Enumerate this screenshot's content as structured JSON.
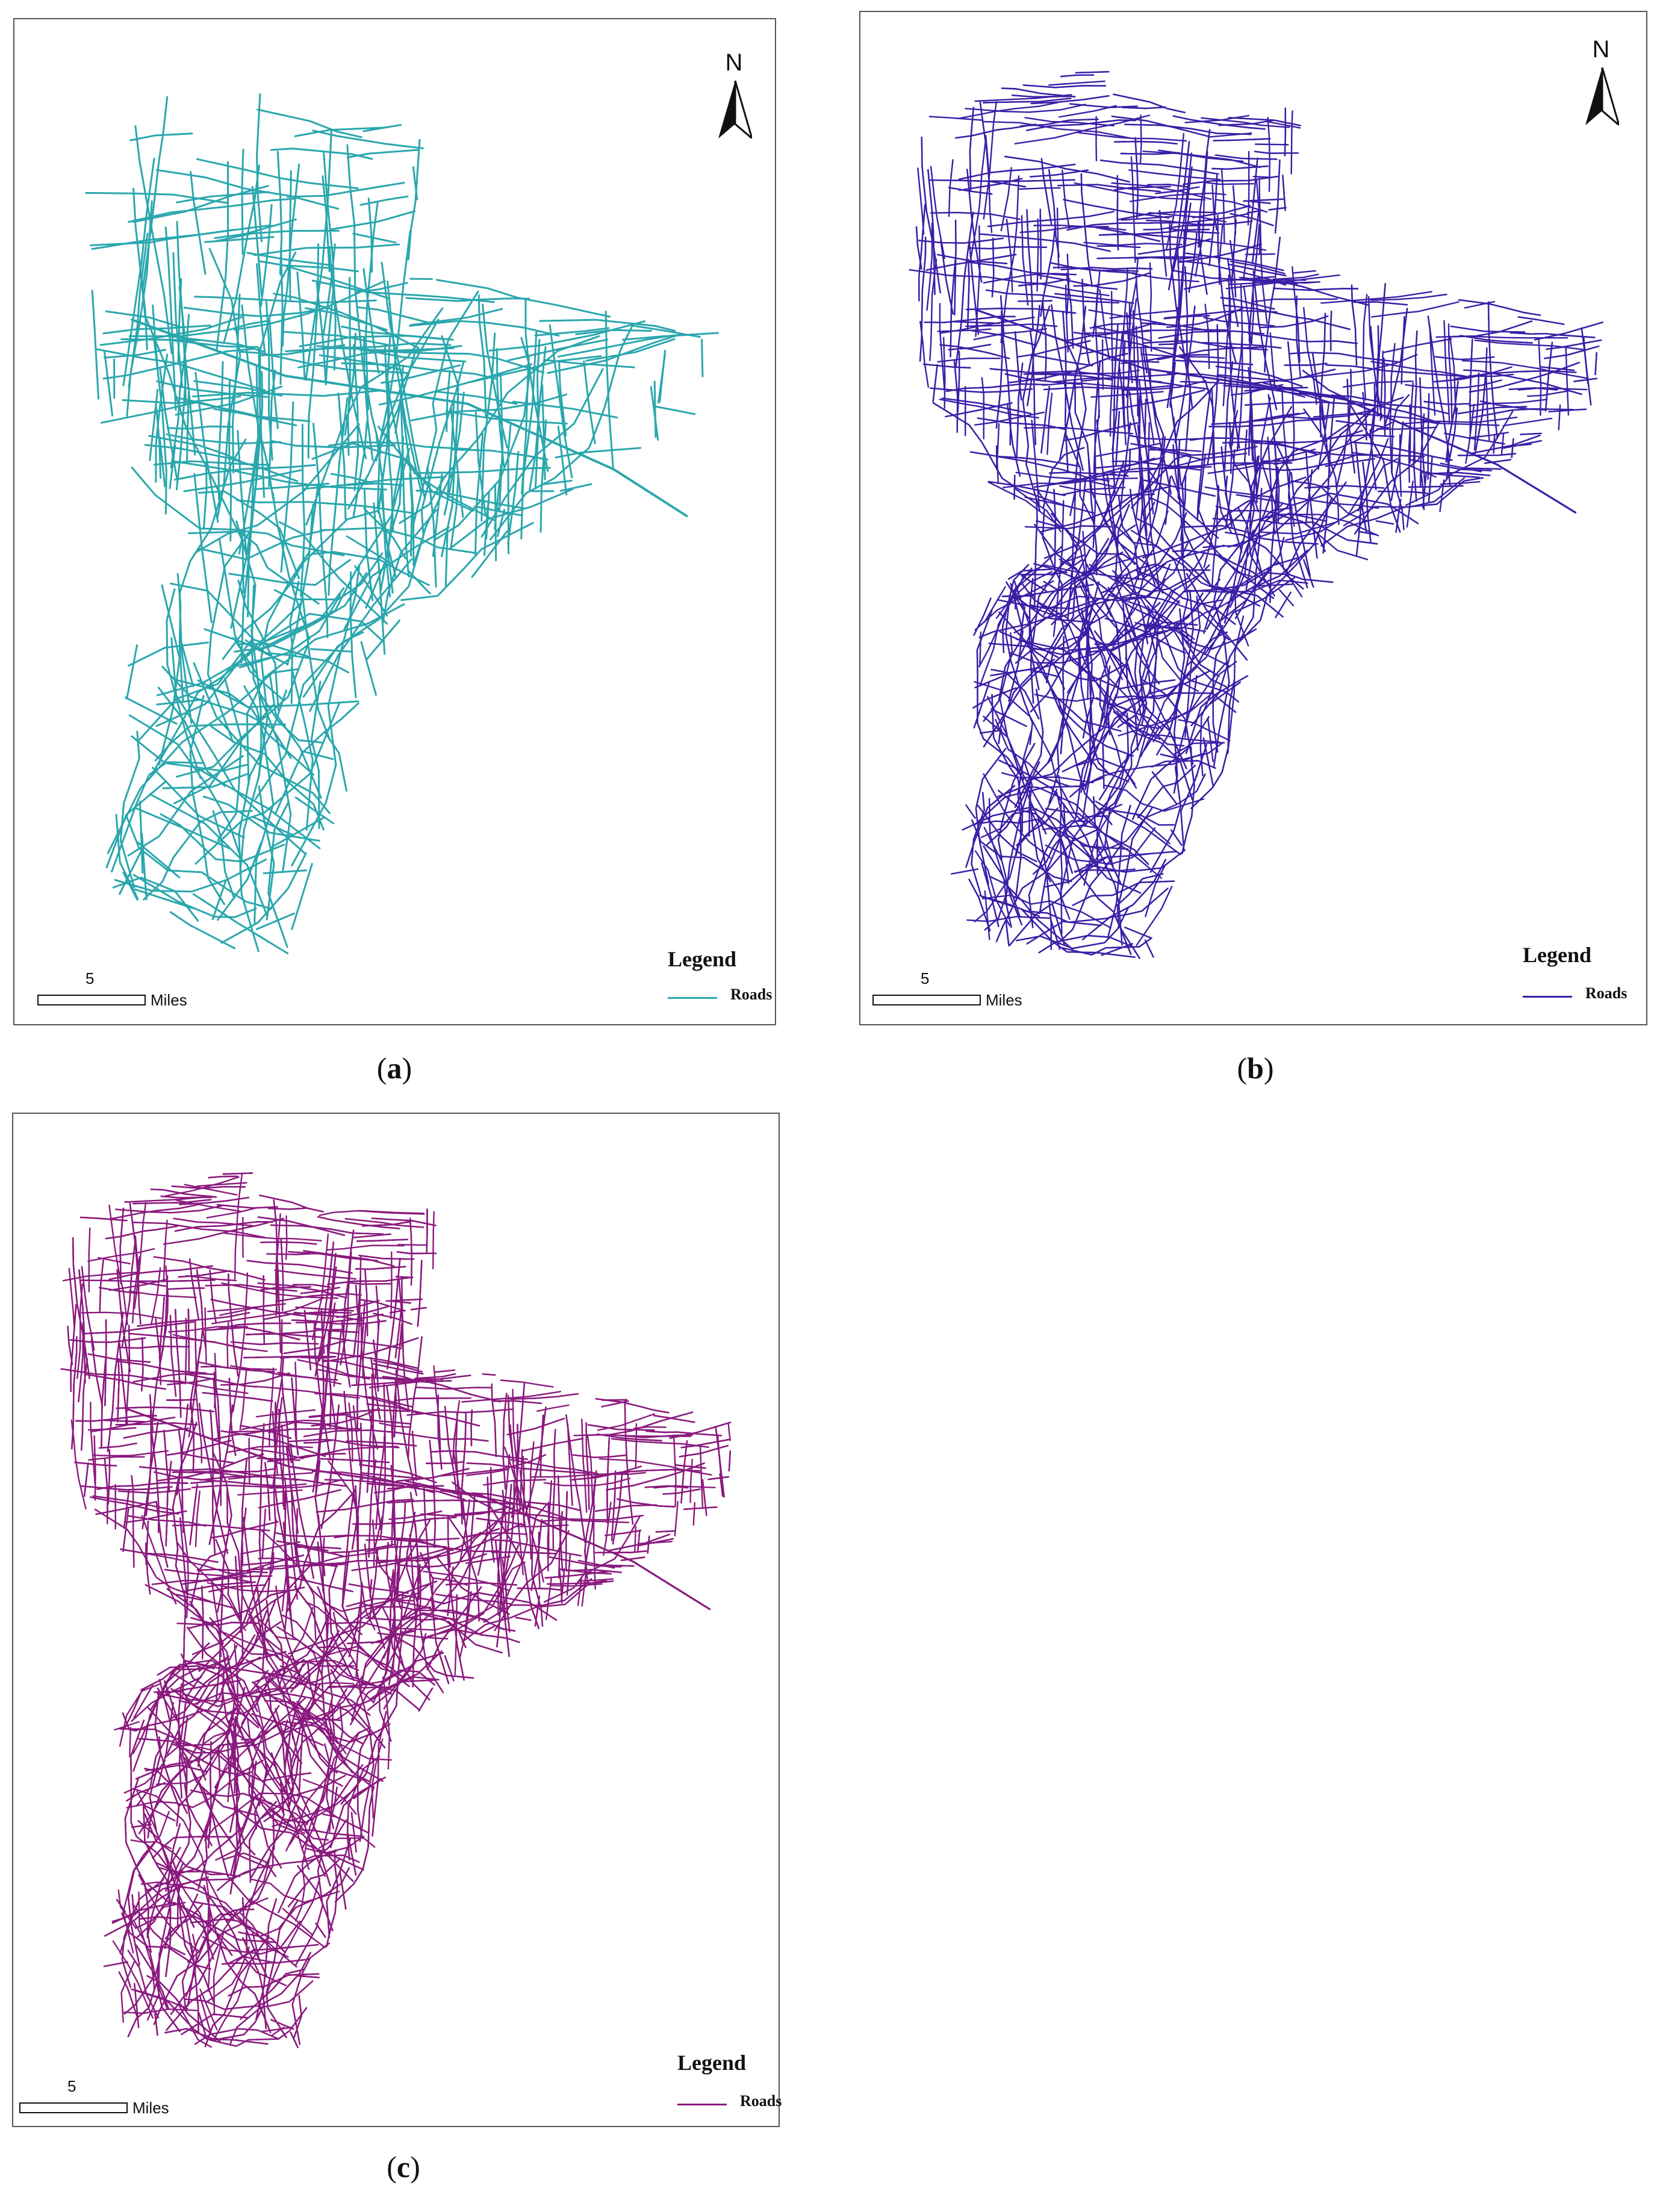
{
  "panels": [
    {
      "id": "a",
      "caption_letter": "a",
      "road_color": "#2aa7ad",
      "density": "low",
      "north_label": "N",
      "legend_title": "Legend",
      "legend_item": "Roads",
      "scale_value": "5",
      "scale_unit": "Miles"
    },
    {
      "id": "b",
      "caption_letter": "b",
      "road_color": "#3b1fa6",
      "density": "medium",
      "north_label": "N",
      "legend_title": "Legend",
      "legend_item": "Roads",
      "scale_value": "5",
      "scale_unit": "Miles"
    },
    {
      "id": "c",
      "caption_letter": "c",
      "road_color": "#8a1a7e",
      "density": "high",
      "north_label": "",
      "legend_title": "Legend",
      "legend_item": "Roads",
      "scale_value": "5",
      "scale_unit": "Miles"
    }
  ]
}
